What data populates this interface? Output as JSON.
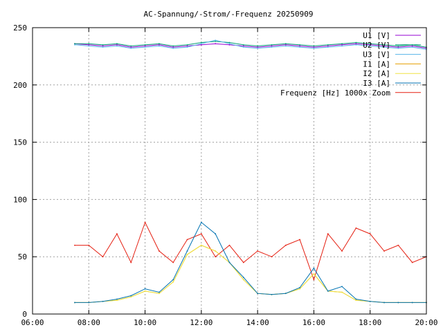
{
  "chart_data": {
    "type": "line",
    "title": "AC-Spannung/-Strom/-Frequenz 20250909",
    "xlabel": "",
    "ylabel": "",
    "xlim": [
      "06:00",
      "20:00"
    ],
    "ylim": [
      0,
      250
    ],
    "x_ticks": [
      "06:00",
      "08:00",
      "10:00",
      "12:00",
      "14:00",
      "16:00",
      "18:00",
      "20:00"
    ],
    "y_ticks": [
      "0",
      "50",
      "100",
      "150",
      "200",
      "250"
    ],
    "grid": true,
    "legend_position": "top-right",
    "x": [
      "07:30",
      "08:00",
      "08:30",
      "09:00",
      "09:30",
      "10:00",
      "10:30",
      "11:00",
      "11:30",
      "12:00",
      "12:30",
      "13:00",
      "13:30",
      "14:00",
      "14:30",
      "15:00",
      "15:30",
      "16:00",
      "16:30",
      "17:00",
      "17:30",
      "18:00",
      "18:30",
      "19:00",
      "19:30",
      "20:00"
    ],
    "series": [
      {
        "name": "U1 [V]",
        "color": "#9400d3",
        "values": [
          236,
          235,
          234,
          235,
          233,
          234,
          235,
          233,
          234,
          235,
          236,
          235,
          234,
          233,
          234,
          235,
          234,
          233,
          234,
          235,
          236,
          235,
          234,
          233,
          234,
          232
        ]
      },
      {
        "name": "U2 [V]",
        "color": "#009e73",
        "values": [
          236,
          236,
          235,
          236,
          234,
          235,
          236,
          234,
          235,
          237,
          238,
          237,
          235,
          234,
          235,
          236,
          235,
          234,
          235,
          236,
          237,
          236,
          235,
          234,
          235,
          233
        ]
      },
      {
        "name": "U3 [V]",
        "color": "#56b4e9",
        "values": [
          235,
          234,
          233,
          234,
          232,
          233,
          234,
          232,
          233,
          236,
          239,
          236,
          233,
          232,
          233,
          234,
          233,
          232,
          233,
          234,
          235,
          234,
          233,
          232,
          233,
          231
        ]
      },
      {
        "name": "I1 [A]",
        "color": "#e69f00",
        "values": [
          10,
          10,
          11,
          12,
          15,
          20,
          18,
          28,
          52,
          60,
          55,
          45,
          30,
          18,
          17,
          18,
          22,
          35,
          20,
          19,
          12,
          11,
          10,
          10,
          10,
          10
        ]
      },
      {
        "name": "I2 [A]",
        "color": "#f0e442",
        "values": [
          10,
          10,
          11,
          12,
          15,
          20,
          18,
          28,
          52,
          60,
          55,
          45,
          30,
          18,
          17,
          18,
          22,
          35,
          20,
          19,
          12,
          11,
          10,
          10,
          10,
          10
        ]
      },
      {
        "name": "I3 [A]",
        "color": "#0072b2",
        "values": [
          10,
          10,
          11,
          13,
          16,
          22,
          19,
          30,
          55,
          80,
          70,
          45,
          32,
          18,
          17,
          18,
          23,
          40,
          20,
          24,
          13,
          11,
          10,
          10,
          10,
          10
        ]
      },
      {
        "name": "Frequenz [Hz] 1000x Zoom",
        "color": "#e51e10",
        "values": [
          60,
          60,
          50,
          70,
          45,
          80,
          55,
          45,
          65,
          70,
          50,
          60,
          45,
          55,
          50,
          60,
          65,
          30,
          70,
          55,
          75,
          70,
          55,
          60,
          45,
          50
        ]
      }
    ]
  }
}
